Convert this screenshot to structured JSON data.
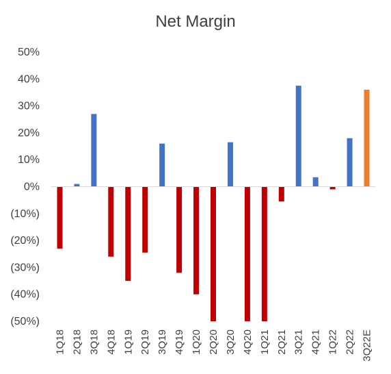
{
  "chart_data": {
    "type": "bar",
    "title": "Net Margin",
    "xlabel": "",
    "ylabel": "",
    "ylim": [
      -0.5,
      0.5
    ],
    "yticks": [
      0.5,
      0.4,
      0.3,
      0.2,
      0.1,
      0,
      -0.1,
      -0.2,
      -0.3,
      -0.4,
      -0.5
    ],
    "ytick_labels": [
      "50%",
      "40%",
      "30%",
      "20%",
      "10%",
      "0%",
      "(10%)",
      "(20%)",
      "(30%)",
      "(40%)",
      "(50%)"
    ],
    "grid": false,
    "categories": [
      "1Q18",
      "2Q18",
      "3Q18",
      "4Q18",
      "1Q19",
      "2Q19",
      "3Q19",
      "4Q19",
      "1Q20",
      "2Q20",
      "3Q20",
      "4Q20",
      "1Q21",
      "2Q21",
      "3Q21",
      "4Q21",
      "1Q22",
      "2Q22",
      "3Q22E"
    ],
    "values": [
      -0.23,
      0.01,
      0.27,
      -0.26,
      -0.35,
      -0.245,
      0.16,
      -0.32,
      -0.4,
      -0.5,
      0.165,
      -0.5,
      -0.5,
      -0.055,
      0.375,
      0.035,
      -0.01,
      0.18,
      0.36
    ],
    "colors": {
      "positive": "#4472C4",
      "negative": "#C00000",
      "estimate": "#ED7D31",
      "axis": "#D9D9D9"
    },
    "estimate_index": 18
  }
}
